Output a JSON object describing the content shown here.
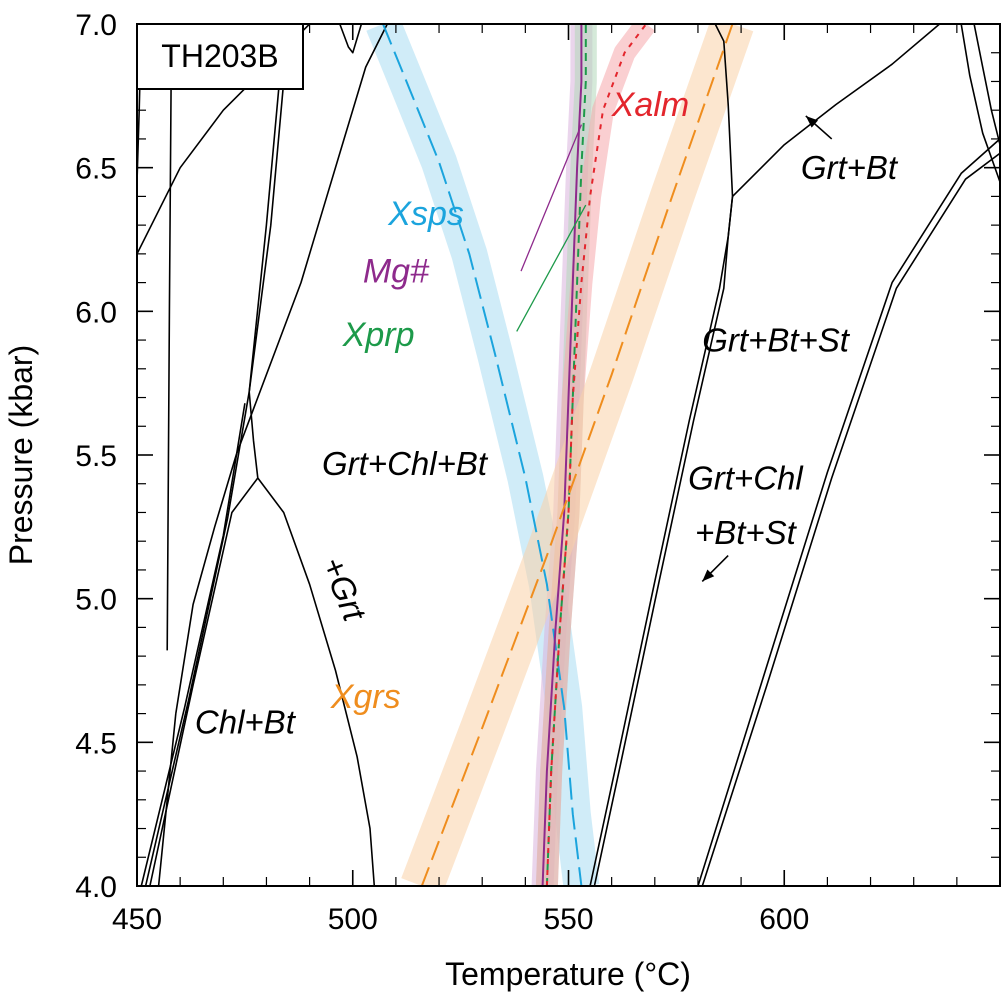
{
  "chart_data": {
    "type": "line",
    "title": "",
    "xlabel": "Temperature (°C)",
    "ylabel": "Pressure (kbar)",
    "xlim": [
      450,
      650
    ],
    "ylim": [
      4.0,
      7.0
    ],
    "x_ticks": [
      450,
      500,
      550,
      600
    ],
    "x_tick_labels": [
      "450",
      "500",
      "550",
      "600"
    ],
    "y_ticks": [
      4.0,
      4.5,
      5.0,
      5.5,
      6.0,
      6.5,
      7.0
    ],
    "y_tick_labels": [
      "4.0",
      "4.5",
      "5.0",
      "5.5",
      "6.0",
      "6.5",
      "7.0"
    ],
    "grid": false,
    "sample_label": "TH203B",
    "field_labels": [
      {
        "text": "Grt+Bt",
        "x": 615,
        "y": 6.46
      },
      {
        "text": "Grt+Bt+St",
        "x": 598,
        "y": 5.86
      },
      {
        "text": "Grt+Chl+Bt",
        "x": 512,
        "y": 5.43
      },
      {
        "text": "Grt+Chl",
        "x": 591,
        "y": 5.38
      },
      {
        "text": "+Bt+St",
        "x": 591,
        "y": 5.19
      },
      {
        "text": "Chl+Bt",
        "x": 475,
        "y": 4.53
      }
    ],
    "rotated_label": {
      "text": "+Grt",
      "x": 495.5,
      "y": 5.02,
      "angle": 68
    },
    "isopleths": [
      {
        "name": "Xsps",
        "color": "#1ba4dd",
        "band_color": "#a9dcf3",
        "dash": "22,8",
        "x": [
          507,
          513,
          520,
          527,
          533,
          540,
          545,
          549,
          551,
          553
        ],
        "y": [
          7.0,
          6.78,
          6.52,
          6.2,
          5.85,
          5.42,
          5.05,
          4.62,
          4.25,
          4.0
        ],
        "label": {
          "text": "Xsps",
          "x": 517,
          "y": 6.3
        }
      },
      {
        "name": "Mg#",
        "color": "#8e2a8c",
        "band_color": "#d9b3dc",
        "dash": "",
        "x": [
          544,
          545,
          547,
          549,
          550,
          551,
          552,
          553,
          553
        ],
        "y": [
          4.0,
          4.4,
          4.9,
          5.3,
          5.7,
          6.1,
          6.5,
          6.8,
          7.0
        ],
        "label": {
          "text": "Mg#",
          "x": 510,
          "y": 6.1
        }
      },
      {
        "name": "Xprp",
        "color": "#1d9a4a",
        "band_color": "#b3d7b9",
        "dash": "8,6",
        "x": [
          545,
          546,
          548,
          550,
          551,
          552,
          553,
          554,
          554
        ],
        "y": [
          4.0,
          4.4,
          4.9,
          5.3,
          5.7,
          6.1,
          6.5,
          6.8,
          7.0
        ],
        "label": {
          "text": "Xprp",
          "x": 506,
          "y": 5.88
        }
      },
      {
        "name": "Xalm",
        "color": "#e3262d",
        "band_color": "#f5a8ac",
        "dash": "5,6",
        "x": [
          545,
          546,
          548,
          550,
          551,
          553,
          555,
          558,
          563,
          568
        ],
        "y": [
          4.0,
          4.4,
          4.9,
          5.3,
          5.7,
          6.1,
          6.4,
          6.7,
          6.9,
          7.0
        ],
        "label": {
          "text": "Xalm",
          "x": 569,
          "y": 6.68
        }
      },
      {
        "name": "Xgrs",
        "color": "#ef8d1e",
        "band_color": "#f9d2a8",
        "dash": "20,8",
        "x": [
          516,
          530,
          545,
          560,
          574,
          588
        ],
        "y": [
          4.0,
          4.55,
          5.15,
          5.78,
          6.4,
          7.0
        ],
        "label": {
          "text": "Xgrs",
          "x": 503,
          "y": 4.62
        }
      }
    ],
    "boundaries": [
      {
        "x": [
          455,
          459
        ],
        "y": [
          4.0,
          4.6
        ]
      },
      {
        "x": [
          459,
          463,
          468,
          473,
          478,
          483,
          488,
          493,
          498,
          503,
          508
        ],
        "y": [
          4.6,
          4.98,
          5.25,
          5.5,
          5.7,
          5.9,
          6.1,
          6.35,
          6.6,
          6.85,
          7.0
        ]
      },
      {
        "x": [
          453,
          463,
          472,
          478
        ],
        "y": [
          4.0,
          4.7,
          5.3,
          5.42
        ]
      },
      {
        "x": [
          452,
          462,
          471,
          476
        ],
        "y": [
          4.0,
          4.65,
          5.28,
          5.72
        ]
      },
      {
        "x": [
          451,
          461,
          470,
          475
        ],
        "y": [
          4.0,
          4.62,
          5.22,
          5.68
        ]
      },
      {
        "x": [
          476,
          477,
          478
        ],
        "y": [
          5.72,
          5.55,
          5.42
        ]
      },
      {
        "x": [
          476,
          481,
          484,
          485
        ],
        "y": [
          5.72,
          6.3,
          6.8,
          7.0
        ]
      },
      {
        "x": [
          476,
          480,
          483,
          484
        ],
        "y": [
          5.72,
          6.3,
          6.8,
          7.0
        ]
      },
      {
        "x": [
          450,
          460,
          470,
          480,
          490
        ],
        "y": [
          6.2,
          6.5,
          6.7,
          6.85,
          7.0
        ]
      },
      {
        "x": [
          450,
          450.5,
          451
        ],
        "y": [
          6.45,
          6.7,
          7.0
        ]
      },
      {
        "x": [
          457,
          457.5,
          458
        ],
        "y": [
          4.82,
          6.0,
          6.98
        ]
      },
      {
        "x": [
          497,
          499,
          500,
          502
        ],
        "y": [
          7.0,
          6.92,
          6.9,
          7.0
        ]
      },
      {
        "x": [
          478,
          484,
          490,
          496,
          501,
          504,
          505
        ],
        "y": [
          5.42,
          5.3,
          5.05,
          4.75,
          4.45,
          4.2,
          4.0
        ]
      },
      {
        "x": [
          555,
          561,
          570,
          578,
          585,
          587,
          588
        ],
        "y": [
          4.0,
          4.42,
          5.06,
          5.62,
          6.08,
          6.26,
          6.4
        ]
      },
      {
        "x": [
          556,
          562,
          571,
          579,
          586,
          587,
          588
        ],
        "y": [
          4.0,
          4.42,
          5.06,
          5.62,
          6.08,
          6.26,
          6.4
        ]
      },
      {
        "x": [
          588,
          587,
          586,
          584
        ],
        "y": [
          6.4,
          6.72,
          6.94,
          7.0
        ]
      },
      {
        "x": [
          588,
          600,
          612,
          625,
          636
        ],
        "y": [
          6.4,
          6.58,
          6.72,
          6.86,
          7.0
        ]
      },
      {
        "x": [
          580,
          595,
          610,
          625,
          641,
          650
        ],
        "y": [
          4.0,
          4.72,
          5.44,
          6.1,
          6.48,
          6.6
        ]
      },
      {
        "x": [
          581,
          596,
          611,
          626,
          642,
          650
        ],
        "y": [
          4.0,
          4.7,
          5.42,
          6.08,
          6.46,
          6.55
        ]
      },
      {
        "x": [
          641,
          643,
          646,
          650
        ],
        "y": [
          7.0,
          6.82,
          6.62,
          6.45
        ]
      },
      {
        "x": [
          644,
          646,
          648,
          650
        ],
        "y": [
          7.0,
          6.85,
          6.7,
          6.58
        ]
      }
    ],
    "arrows": [
      {
        "from": {
          "x": 611,
          "y": 6.6
        },
        "to": {
          "x": 605,
          "y": 6.68
        }
      },
      {
        "from": {
          "x": 587,
          "y": 5.15
        },
        "to": {
          "x": 581,
          "y": 5.06
        }
      }
    ],
    "leader_lines": [
      {
        "from": {
          "x": 539,
          "y": 6.14
        },
        "to": {
          "x": 553,
          "y": 6.65
        },
        "color": "#8e2a8c"
      },
      {
        "from": {
          "x": 538,
          "y": 5.93
        },
        "to": {
          "x": 554,
          "y": 6.37
        },
        "color": "#1d9a4a"
      }
    ]
  }
}
